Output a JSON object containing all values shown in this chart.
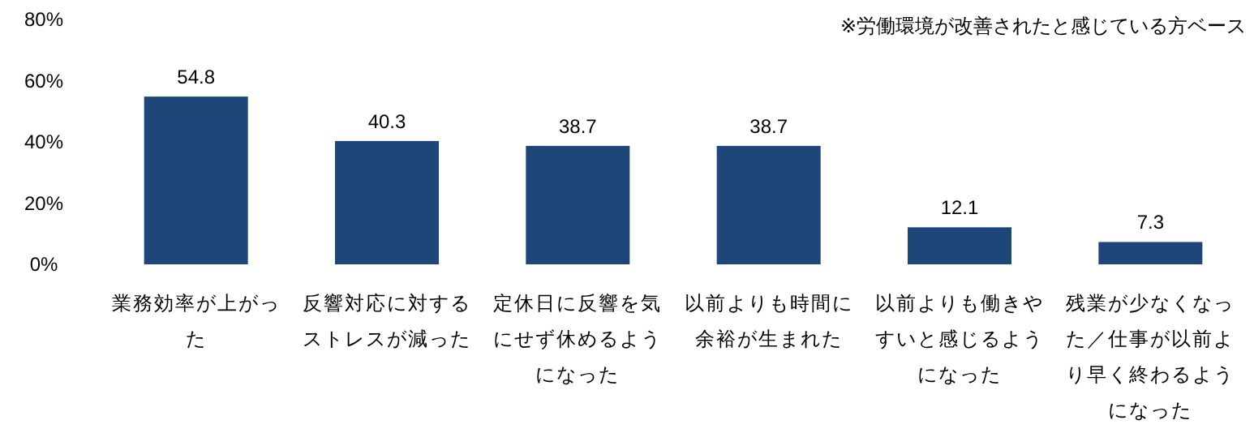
{
  "chart_data": {
    "type": "bar",
    "categories": [
      "業務効率が上がった",
      "反響対応に対するストレスが減った",
      "定休日に反響を気にせず休めるようになった",
      "以前よりも時間に余裕が生まれた",
      "以前よりも働きやすいと感じるようになった",
      "残業が少なくなった／仕事が以前より早く終わるようになった"
    ],
    "values": [
      54.8,
      40.3,
      38.7,
      38.7,
      12.1,
      7.3
    ],
    "color": "#1f4678",
    "ylim": [
      0,
      80
    ],
    "yticks": [
      {
        "value": 0,
        "label": "0%"
      },
      {
        "value": 20,
        "label": "20%"
      },
      {
        "value": 40,
        "label": "40%"
      },
      {
        "value": 60,
        "label": "60%"
      },
      {
        "value": 80,
        "label": "80%"
      }
    ],
    "data_labels": true,
    "grid": false,
    "annotations": [
      "※労働環境が改善されたと感じている方ベース"
    ]
  }
}
